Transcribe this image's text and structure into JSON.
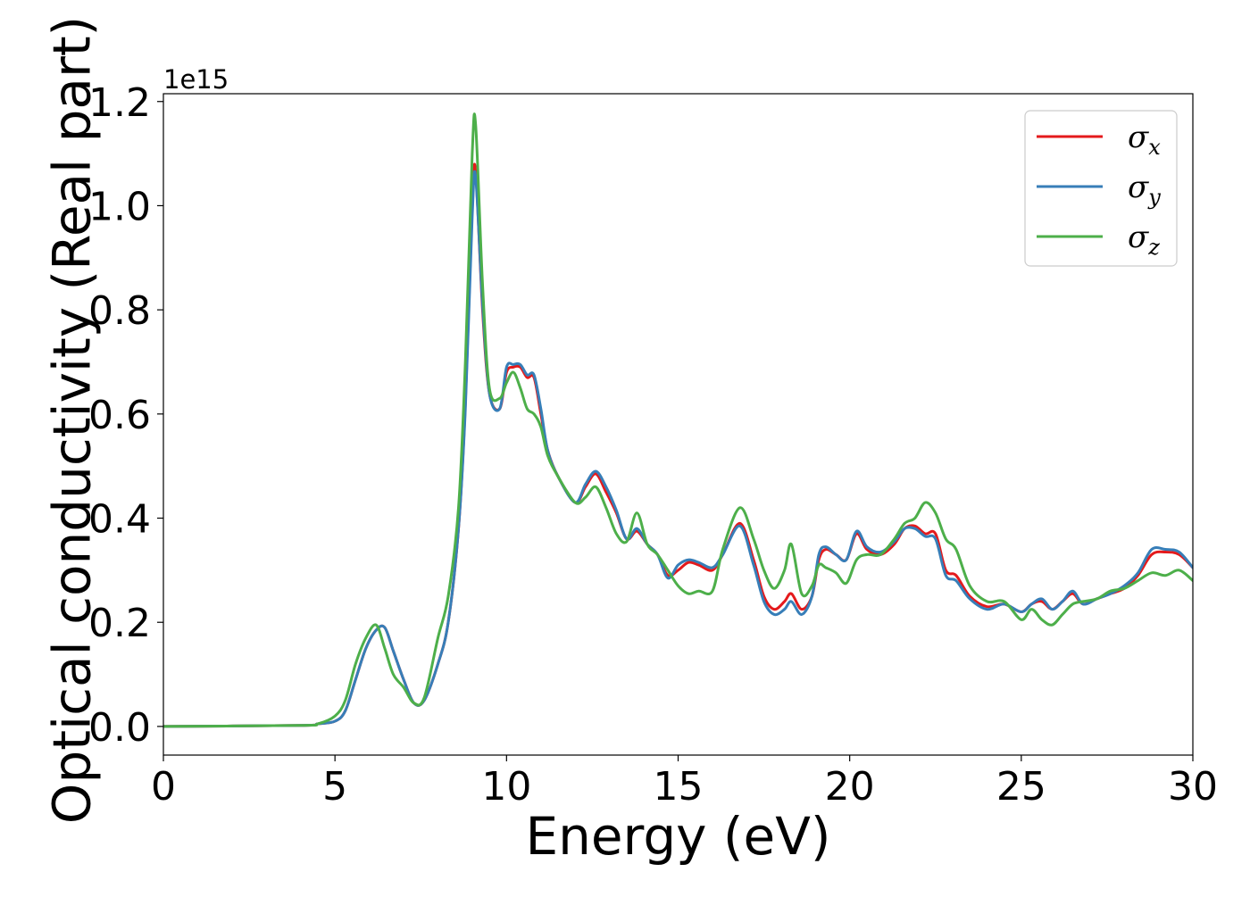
{
  "chart_data": {
    "type": "line",
    "xlabel": "Energy (eV)",
    "ylabel": "Optical conductivity (Real part)",
    "y_offset_label": "1e15",
    "y_scale": 1000000000000000.0,
    "xlim": [
      0,
      30
    ],
    "ylim": [
      -0.055,
      1.215
    ],
    "x_ticks": [
      0,
      5,
      10,
      15,
      20,
      25,
      30
    ],
    "x_tick_labels": [
      "0",
      "5",
      "10",
      "15",
      "20",
      "25",
      "30"
    ],
    "y_ticks": [
      0.0,
      0.2,
      0.4,
      0.6,
      0.8,
      1.0,
      1.2
    ],
    "y_tick_labels": [
      "0.0",
      "0.2",
      "0.4",
      "0.6",
      "0.8",
      "1.0",
      "1.2"
    ],
    "grid": false,
    "legend_position": "top-right",
    "series": [
      {
        "name": "σx",
        "legend_symbol": "σ",
        "legend_subscript": "x",
        "color": "#e41a1c",
        "x": [
          0,
          4.0,
          4.5,
          5.0,
          5.3,
          5.6,
          5.9,
          6.2,
          6.45,
          6.7,
          7.0,
          7.3,
          7.6,
          8.0,
          8.3,
          8.6,
          8.8,
          9.0,
          9.1,
          9.3,
          9.5,
          9.8,
          10.0,
          10.2,
          10.4,
          10.6,
          10.8,
          11.0,
          11.2,
          11.5,
          12.0,
          12.3,
          12.6,
          12.9,
          13.2,
          13.5,
          13.8,
          14.1,
          14.4,
          14.7,
          15.0,
          15.3,
          15.6,
          16.0,
          16.3,
          16.8,
          17.2,
          17.5,
          17.8,
          18.1,
          18.3,
          18.6,
          18.9,
          19.1,
          19.3,
          19.6,
          19.9,
          20.2,
          20.5,
          20.9,
          21.3,
          21.6,
          21.9,
          22.2,
          22.5,
          22.8,
          23.1,
          23.5,
          24.0,
          24.5,
          25.0,
          25.3,
          25.6,
          25.9,
          26.2,
          26.5,
          26.8,
          27.2,
          27.6,
          28.0,
          28.4,
          28.8,
          29.2,
          29.6,
          30.0
        ],
        "y": [
          0.0,
          0.002,
          0.005,
          0.01,
          0.03,
          0.09,
          0.15,
          0.185,
          0.19,
          0.145,
          0.09,
          0.045,
          0.05,
          0.12,
          0.2,
          0.38,
          0.62,
          1.0,
          1.065,
          0.8,
          0.64,
          0.61,
          0.68,
          0.69,
          0.69,
          0.67,
          0.67,
          0.6,
          0.53,
          0.48,
          0.43,
          0.46,
          0.485,
          0.45,
          0.41,
          0.36,
          0.375,
          0.35,
          0.33,
          0.29,
          0.3,
          0.315,
          0.31,
          0.3,
          0.33,
          0.39,
          0.32,
          0.25,
          0.225,
          0.24,
          0.255,
          0.225,
          0.25,
          0.32,
          0.34,
          0.33,
          0.32,
          0.37,
          0.34,
          0.33,
          0.35,
          0.38,
          0.385,
          0.37,
          0.37,
          0.3,
          0.29,
          0.25,
          0.23,
          0.235,
          0.22,
          0.235,
          0.24,
          0.225,
          0.24,
          0.255,
          0.235,
          0.245,
          0.255,
          0.265,
          0.29,
          0.33,
          0.335,
          0.33,
          0.305
        ]
      },
      {
        "name": "σy",
        "legend_symbol": "σ",
        "legend_subscript": "y",
        "color": "#377eb8",
        "x": [
          0,
          4.0,
          4.5,
          5.0,
          5.3,
          5.6,
          5.9,
          6.2,
          6.45,
          6.7,
          7.0,
          7.3,
          7.6,
          8.0,
          8.3,
          8.6,
          8.8,
          9.0,
          9.1,
          9.3,
          9.5,
          9.8,
          10.0,
          10.2,
          10.4,
          10.6,
          10.8,
          11.0,
          11.2,
          11.5,
          12.0,
          12.3,
          12.6,
          12.9,
          13.2,
          13.5,
          13.8,
          14.1,
          14.4,
          14.7,
          15.0,
          15.3,
          15.6,
          16.0,
          16.3,
          16.8,
          17.2,
          17.5,
          17.8,
          18.1,
          18.3,
          18.6,
          18.9,
          19.1,
          19.3,
          19.6,
          19.9,
          20.2,
          20.5,
          20.9,
          21.3,
          21.6,
          21.9,
          22.2,
          22.5,
          22.8,
          23.1,
          23.5,
          24.0,
          24.5,
          25.0,
          25.3,
          25.6,
          25.9,
          26.2,
          26.5,
          26.8,
          27.2,
          27.6,
          28.0,
          28.4,
          28.8,
          29.2,
          29.6,
          30.0
        ],
        "y": [
          0.0,
          0.002,
          0.005,
          0.01,
          0.03,
          0.09,
          0.15,
          0.185,
          0.19,
          0.145,
          0.09,
          0.045,
          0.05,
          0.12,
          0.2,
          0.38,
          0.61,
          0.98,
          1.055,
          0.81,
          0.64,
          0.61,
          0.69,
          0.695,
          0.695,
          0.675,
          0.675,
          0.61,
          0.53,
          0.48,
          0.43,
          0.465,
          0.49,
          0.46,
          0.415,
          0.36,
          0.38,
          0.35,
          0.33,
          0.285,
          0.31,
          0.32,
          0.315,
          0.305,
          0.33,
          0.385,
          0.31,
          0.24,
          0.215,
          0.225,
          0.24,
          0.215,
          0.25,
          0.33,
          0.345,
          0.33,
          0.32,
          0.375,
          0.345,
          0.335,
          0.355,
          0.38,
          0.38,
          0.365,
          0.36,
          0.29,
          0.28,
          0.245,
          0.225,
          0.235,
          0.22,
          0.235,
          0.245,
          0.225,
          0.24,
          0.26,
          0.235,
          0.245,
          0.255,
          0.27,
          0.295,
          0.34,
          0.34,
          0.335,
          0.305
        ]
      },
      {
        "name": "σz",
        "legend_symbol": "σ",
        "legend_subscript": "z",
        "color": "#4daf4a",
        "x": [
          0,
          4.0,
          4.5,
          5.0,
          5.3,
          5.6,
          5.9,
          6.2,
          6.45,
          6.7,
          7.0,
          7.3,
          7.6,
          8.0,
          8.3,
          8.6,
          8.8,
          9.0,
          9.1,
          9.3,
          9.5,
          9.8,
          10.0,
          10.2,
          10.4,
          10.6,
          10.8,
          11.0,
          11.2,
          11.5,
          12.0,
          12.3,
          12.6,
          12.9,
          13.2,
          13.5,
          13.8,
          14.1,
          14.4,
          14.7,
          15.0,
          15.3,
          15.6,
          16.0,
          16.3,
          16.8,
          17.2,
          17.5,
          17.8,
          18.1,
          18.3,
          18.6,
          18.9,
          19.1,
          19.3,
          19.6,
          19.9,
          20.2,
          20.5,
          20.9,
          21.3,
          21.6,
          21.9,
          22.2,
          22.5,
          22.8,
          23.1,
          23.5,
          24.0,
          24.5,
          25.0,
          25.3,
          25.6,
          25.9,
          26.2,
          26.5,
          26.8,
          27.2,
          27.6,
          28.0,
          28.4,
          28.8,
          29.2,
          29.6,
          30.0
        ],
        "y": [
          0.0,
          0.002,
          0.005,
          0.02,
          0.05,
          0.12,
          0.17,
          0.195,
          0.15,
          0.1,
          0.075,
          0.045,
          0.055,
          0.17,
          0.25,
          0.42,
          0.7,
          1.1,
          1.155,
          0.85,
          0.65,
          0.63,
          0.66,
          0.68,
          0.65,
          0.61,
          0.6,
          0.575,
          0.52,
          0.48,
          0.43,
          0.44,
          0.46,
          0.42,
          0.37,
          0.355,
          0.41,
          0.35,
          0.33,
          0.3,
          0.27,
          0.255,
          0.26,
          0.26,
          0.34,
          0.42,
          0.36,
          0.3,
          0.265,
          0.3,
          0.35,
          0.255,
          0.27,
          0.31,
          0.305,
          0.295,
          0.275,
          0.32,
          0.33,
          0.33,
          0.36,
          0.39,
          0.4,
          0.43,
          0.41,
          0.36,
          0.34,
          0.27,
          0.24,
          0.24,
          0.205,
          0.225,
          0.205,
          0.195,
          0.215,
          0.235,
          0.24,
          0.245,
          0.26,
          0.265,
          0.28,
          0.295,
          0.29,
          0.3,
          0.28
        ]
      }
    ]
  }
}
